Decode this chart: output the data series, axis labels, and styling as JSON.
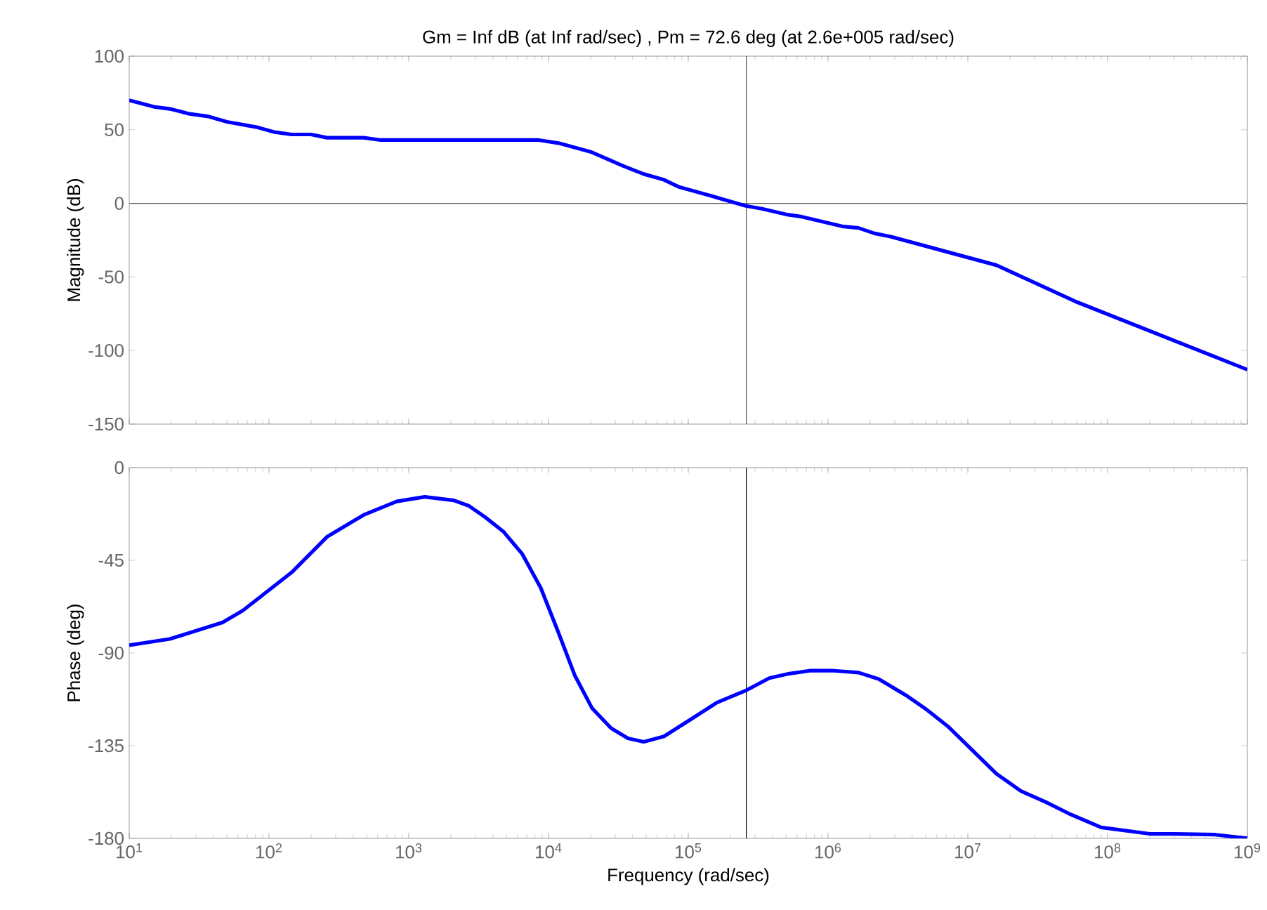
{
  "chart_data": [
    {
      "type": "line",
      "title": "Gm = Inf dB (at Inf rad/sec) ,  Pm = 72.6 deg (at 2.6e+005 rad/sec)",
      "ylabel": "Magnitude (dB)",
      "log": "x",
      "tick_labels": "y",
      "xlim": [
        10,
        1000000000
      ],
      "xticks": [
        10,
        100,
        1000,
        10000,
        100000,
        1000000,
        10000000,
        100000000,
        1000000000
      ],
      "ylim": [
        -150,
        100
      ],
      "yticks": [
        -150,
        -100,
        -50,
        0,
        50,
        100
      ],
      "ref_lines": [
        {
          "axis": "y",
          "value": 0,
          "color": "#555555"
        },
        {
          "axis": "x",
          "value": 260000,
          "color": "#555555"
        }
      ],
      "series": [
        {
          "color": "#0000ff",
          "x": [
            10,
            15,
            20,
            27,
            37,
            50,
            83,
            110,
            145,
            200,
            260,
            475,
            630,
            8500,
            11800,
            20000,
            34500,
            48000,
            67000,
            85000,
            149000,
            255000,
            340000,
            500000,
            650000,
            1260000,
            1650000,
            2150000,
            2800000,
            16000000,
            60000000,
            1000000000
          ],
          "values": [
            70,
            65.6,
            64,
            60.8,
            59,
            55.4,
            51.6,
            48.4,
            46.8,
            46.8,
            44.6,
            44.6,
            43,
            43,
            40.9,
            35,
            25.3,
            19.9,
            16,
            11.3,
            4.8,
            -1.6,
            -3.8,
            -7.5,
            -9.1,
            -15.6,
            -16.7,
            -20.4,
            -22.6,
            -42,
            -67,
            -113
          ]
        }
      ]
    },
    {
      "type": "line",
      "xlabel": "Frequency  (rad/sec)",
      "ylabel": "Phase (deg)",
      "log": "x",
      "xlim": [
        10,
        1000000000
      ],
      "xticks": [
        {
          "value": 10,
          "label": "10$^{1}$"
        },
        {
          "value": 100,
          "label": "10$^{2}$"
        },
        {
          "value": 1000,
          "label": "10$^{3}$"
        },
        {
          "value": 10000,
          "label": "10$^{4}$"
        },
        {
          "value": 100000,
          "label": "10$^{5}$"
        },
        {
          "value": 1000000,
          "label": "10$^{6}$"
        },
        {
          "value": 10000000,
          "label": "10$^{7}$"
        },
        {
          "value": 100000000,
          "label": "10$^{8}$"
        },
        {
          "value": 1000000000,
          "label": "10$^{9}$"
        }
      ],
      "ylim": [
        -180,
        0
      ],
      "yticks": [
        -180,
        -135,
        -90,
        -45,
        0
      ],
      "ref_lines": [
        {
          "axis": "x",
          "value": 260000,
          "color": "#000000"
        }
      ],
      "series": [
        {
          "color": "#0000ff",
          "x": [
            10,
            19.5,
            46.5,
            65,
            145,
            260,
            475,
            820,
            1300,
            2100,
            2700,
            3500,
            4750,
            6500,
            8800,
            11700,
            15400,
            20500,
            28000,
            37000,
            48000,
            67000,
            100000,
            160000,
            255000,
            380000,
            530000,
            740000,
            1100000,
            1650000,
            2300000,
            3700000,
            5100000,
            7200000,
            16000000,
            24000000,
            36000000,
            53000000,
            90000000,
            200000000,
            300000000,
            590000000,
            1000000000
          ],
          "values": [
            -86.2,
            -83.2,
            -75.2,
            -69.4,
            -50.9,
            -33.6,
            -23,
            -16.4,
            -14.2,
            -15.9,
            -18.6,
            -23.9,
            -31,
            -42,
            -58.4,
            -79.6,
            -100.8,
            -116.8,
            -126.5,
            -131.4,
            -133.1,
            -130.5,
            -123,
            -114.1,
            -108.4,
            -102.2,
            -100,
            -98.6,
            -98.6,
            -99.5,
            -102.6,
            -111,
            -117.6,
            -125.6,
            -148.6,
            -157,
            -162.3,
            -168,
            -174.7,
            -177.8,
            -177.8,
            -178.2,
            -180
          ]
        }
      ]
    }
  ]
}
